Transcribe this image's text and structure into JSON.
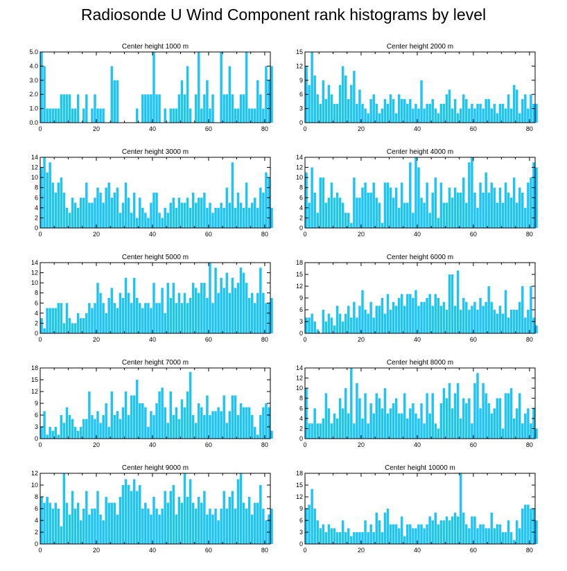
{
  "title": "Radiosonde U Wind Component rank histograms by level",
  "bar_color": "#1ec4f4",
  "chart_data": [
    {
      "type": "bar",
      "title": "Center height 1000 m",
      "xlabel": "",
      "ylabel": "",
      "xlim": [
        0,
        82
      ],
      "x_ticks": [
        0,
        20,
        40,
        60,
        80
      ],
      "ylim": [
        0,
        5
      ],
      "y_ticks": [
        0,
        1,
        2,
        3,
        4,
        5
      ],
      "y_tick_labels": [
        "0.0",
        "1.0",
        "2.0",
        "3.0",
        "4.0",
        "5.0"
      ],
      "y_axis_side": "left",
      "values": [
        5,
        4,
        1,
        1,
        1,
        1,
        1,
        2,
        2,
        2,
        2,
        1,
        1,
        2,
        0,
        1,
        2,
        0,
        1,
        2,
        1,
        1,
        1,
        0,
        0,
        4,
        3,
        3,
        0,
        0,
        0,
        0,
        0,
        0,
        1,
        0,
        2,
        2,
        2,
        2,
        5,
        2,
        2,
        0,
        1,
        0,
        1,
        1,
        1,
        2,
        3,
        2,
        4,
        1,
        0,
        2,
        5,
        1,
        2,
        3,
        1,
        2,
        0,
        0,
        5,
        2,
        2,
        4,
        2,
        1,
        1,
        2,
        2,
        5,
        1,
        1,
        1,
        3,
        2,
        1,
        4,
        3,
        4
      ]
    },
    {
      "type": "bar",
      "title": "Center height 2000 m",
      "xlabel": "",
      "ylabel": "",
      "xlim": [
        0,
        82
      ],
      "x_ticks": [
        0,
        20,
        40,
        60,
        80
      ],
      "ylim": [
        0,
        15
      ],
      "y_ticks": [
        0,
        3,
        6,
        9,
        12,
        15
      ],
      "y_tick_labels": [
        "0",
        "3",
        "6",
        "9",
        "12",
        "15"
      ],
      "y_axis_side": "left",
      "values": [
        12,
        8,
        15,
        10,
        6,
        4,
        9,
        5,
        8,
        6,
        4,
        4,
        8,
        12,
        10,
        5,
        8,
        11,
        4,
        7,
        4,
        3,
        2,
        5,
        6,
        4,
        2,
        3,
        5,
        4,
        6,
        5,
        2,
        6,
        5,
        5,
        4,
        5,
        3,
        4,
        3,
        9,
        3,
        4,
        4,
        5,
        3,
        2,
        4,
        4,
        6,
        7,
        3,
        5,
        2,
        3,
        6,
        5,
        3,
        4,
        3,
        4,
        4,
        3,
        5,
        5,
        3,
        4,
        2,
        4,
        4,
        3,
        6,
        3,
        8,
        7,
        2,
        5,
        6,
        3,
        6,
        4,
        4
      ]
    },
    {
      "type": "bar",
      "title": "Center height 3000 m",
      "xlabel": "",
      "ylabel": "",
      "xlim": [
        0,
        82
      ],
      "x_ticks": [
        0,
        20,
        40,
        60,
        80
      ],
      "ylim": [
        0,
        14
      ],
      "y_ticks": [
        0,
        2,
        4,
        6,
        8,
        10,
        12,
        14
      ],
      "y_tick_labels": [
        "0",
        "2",
        "4",
        "6",
        "8",
        "10",
        "12",
        "14"
      ],
      "y_axis_side": "left",
      "values": [
        12,
        14,
        11,
        13,
        9,
        7,
        9,
        10,
        7,
        4,
        3,
        6,
        5,
        4,
        6,
        6,
        9,
        5,
        5,
        6,
        8,
        7,
        5,
        8,
        9,
        6,
        7,
        8,
        3,
        5,
        9,
        6,
        3,
        7,
        2,
        6,
        4,
        3,
        2,
        5,
        7,
        7,
        3,
        2,
        4,
        3,
        5,
        6,
        4,
        6,
        5,
        5,
        6,
        4,
        7,
        5,
        6,
        6,
        7,
        4,
        5,
        3,
        4,
        4,
        5,
        4,
        8,
        5,
        13,
        4,
        7,
        5,
        4,
        9,
        4,
        5,
        6,
        4,
        8,
        7,
        11,
        10,
        4
      ]
    },
    {
      "type": "bar",
      "title": "Center height 4000 m",
      "xlabel": "",
      "ylabel": "",
      "xlim": [
        0,
        82
      ],
      "x_ticks": [
        0,
        20,
        40,
        60,
        80
      ],
      "ylim": [
        0,
        14
      ],
      "y_ticks": [
        0,
        2,
        4,
        6,
        8,
        10,
        12,
        14
      ],
      "y_tick_labels": [
        "0",
        "2",
        "4",
        "6",
        "8",
        "10",
        "12",
        "14"
      ],
      "y_axis_side": "left",
      "values": [
        11,
        5,
        12,
        7,
        3,
        10,
        10,
        5,
        6,
        9,
        6,
        7,
        6,
        5,
        3,
        3,
        1,
        10,
        6,
        6,
        8,
        9,
        7,
        7,
        9,
        6,
        5,
        1,
        9,
        9,
        8,
        6,
        8,
        4,
        9,
        5,
        5,
        13,
        3,
        14,
        12,
        6,
        5,
        9,
        3,
        7,
        10,
        2,
        9,
        5,
        5,
        8,
        6,
        8,
        7,
        7,
        10,
        5,
        13,
        14,
        7,
        4,
        9,
        7,
        11,
        7,
        9,
        8,
        5,
        8,
        5,
        9,
        7,
        6,
        10,
        5,
        8,
        7,
        4,
        9,
        10,
        13,
        12
      ]
    },
    {
      "type": "bar",
      "title": "Center height 5000 m",
      "xlabel": "",
      "ylabel": "",
      "xlim": [
        0,
        82
      ],
      "x_ticks": [
        0,
        20,
        40,
        60,
        80
      ],
      "ylim": [
        0,
        14
      ],
      "y_ticks": [
        0,
        2,
        4,
        6,
        8,
        10,
        12,
        14
      ],
      "y_tick_labels": [
        "0",
        "2",
        "4",
        "6",
        "8",
        "10",
        "12",
        "14"
      ],
      "y_axis_side": "left",
      "values": [
        3,
        1,
        5,
        5,
        5,
        5,
        6,
        6,
        2,
        6,
        3,
        2,
        2,
        4,
        3,
        3,
        4,
        6,
        5,
        6,
        10,
        8,
        6,
        4,
        7,
        9,
        6,
        5,
        8,
        7,
        11,
        8,
        6,
        11,
        7,
        6,
        5,
        6,
        6,
        5,
        10,
        6,
        6,
        9,
        4,
        10,
        7,
        10,
        6,
        8,
        6,
        8,
        6,
        7,
        10,
        9,
        8,
        10,
        10,
        7,
        14,
        6,
        13,
        8,
        11,
        9,
        12,
        8,
        11,
        9,
        10,
        13,
        12,
        10,
        7,
        8,
        6,
        8,
        13,
        8,
        6,
        6,
        7
      ]
    },
    {
      "type": "bar",
      "title": "Center height 6000 m",
      "xlabel": "",
      "ylabel": "",
      "xlim": [
        0,
        82
      ],
      "x_ticks": [
        0,
        20,
        40,
        60,
        80
      ],
      "ylim": [
        0,
        18
      ],
      "y_ticks": [
        0,
        3,
        6,
        9,
        12,
        15,
        18
      ],
      "y_tick_labels": [
        "0",
        "3",
        "6",
        "9",
        "12",
        "15",
        "18"
      ],
      "y_axis_side": "left",
      "values": [
        4,
        4,
        5,
        3,
        1,
        0,
        6,
        3,
        5,
        4,
        2,
        7,
        5,
        3,
        5,
        7,
        4,
        8,
        4,
        7,
        11,
        6,
        5,
        8,
        4,
        7,
        7,
        9,
        5,
        10,
        6,
        8,
        7,
        9,
        10,
        7,
        10,
        10,
        9,
        11,
        7,
        8,
        8,
        9,
        10,
        7,
        10,
        9,
        7,
        8,
        6,
        15,
        15,
        7,
        16,
        6,
        9,
        8,
        6,
        7,
        8,
        6,
        9,
        7,
        8,
        12,
        8,
        6,
        5,
        7,
        5,
        11,
        4,
        6,
        6,
        6,
        8,
        12,
        4,
        6,
        12,
        4,
        2
      ]
    },
    {
      "type": "bar",
      "title": "Center height 7000 m",
      "xlabel": "",
      "ylabel": "",
      "xlim": [
        0,
        82
      ],
      "x_ticks": [
        0,
        20,
        40,
        60,
        80
      ],
      "ylim": [
        0,
        18
      ],
      "y_ticks": [
        0,
        3,
        6,
        9,
        12,
        15,
        18
      ],
      "y_tick_labels": [
        "0",
        "3",
        "6",
        "9",
        "12",
        "15",
        "18"
      ],
      "y_axis_side": "left",
      "values": [
        3,
        7,
        1,
        3,
        2,
        3,
        1,
        6,
        4,
        8,
        6,
        5,
        3,
        2,
        3,
        5,
        5,
        12,
        6,
        5,
        7,
        4,
        6,
        9,
        3,
        12,
        6,
        7,
        5,
        8,
        12,
        6,
        11,
        11,
        15,
        9,
        9,
        8,
        3,
        7,
        6,
        9,
        12,
        13,
        8,
        4,
        12,
        6,
        8,
        5,
        10,
        8,
        12,
        17,
        6,
        4,
        9,
        8,
        6,
        11,
        6,
        7,
        7,
        8,
        7,
        11,
        4,
        7,
        11,
        11,
        6,
        9,
        8,
        8,
        8,
        6,
        3,
        1,
        6,
        8,
        9,
        8,
        2
      ]
    },
    {
      "type": "bar",
      "title": "Center height 8000 m",
      "xlabel": "",
      "ylabel": "",
      "xlim": [
        0,
        82
      ],
      "x_ticks": [
        0,
        20,
        40,
        60,
        80
      ],
      "ylim": [
        0,
        14
      ],
      "y_ticks": [
        0,
        2,
        4,
        6,
        8,
        10,
        12,
        14
      ],
      "y_tick_labels": [
        "0",
        "2",
        "4",
        "6",
        "8",
        "10",
        "12",
        "14"
      ],
      "y_axis_side": "left",
      "values": [
        10,
        3,
        3,
        6,
        3,
        3,
        4,
        9,
        6,
        3,
        5,
        4,
        8,
        6,
        10,
        5,
        14,
        3,
        11,
        8,
        4,
        9,
        3,
        7,
        5,
        9,
        8,
        6,
        10,
        5,
        6,
        7,
        8,
        5,
        5,
        9,
        4,
        6,
        7,
        5,
        4,
        7,
        3,
        9,
        5,
        9,
        3,
        2,
        7,
        10,
        8,
        11,
        6,
        9,
        11,
        4,
        8,
        7,
        8,
        3,
        11,
        13,
        6,
        11,
        9,
        7,
        5,
        6,
        8,
        8,
        2,
        9,
        9,
        10,
        4,
        6,
        9,
        3,
        5,
        6,
        3,
        6,
        2
      ]
    },
    {
      "type": "bar",
      "title": "Center height 9000 m",
      "xlabel": "",
      "ylabel": "",
      "xlim": [
        0,
        82
      ],
      "x_ticks": [
        0,
        20,
        40,
        60,
        80
      ],
      "ylim": [
        0,
        12
      ],
      "y_ticks": [
        0,
        2,
        4,
        6,
        8,
        10,
        12
      ],
      "y_tick_labels": [
        "0",
        "2",
        "4",
        "6",
        "8",
        "10",
        "12"
      ],
      "y_axis_side": "left",
      "values": [
        8,
        7,
        8,
        7,
        6,
        7,
        6,
        3,
        12,
        7,
        5,
        9,
        6,
        7,
        4,
        6,
        9,
        5,
        6,
        6,
        9,
        5,
        4,
        8,
        7,
        7,
        7,
        5,
        8,
        10,
        11,
        10,
        9,
        11,
        9,
        10,
        6,
        7,
        6,
        5,
        8,
        6,
        5,
        6,
        9,
        7,
        9,
        10,
        5,
        8,
        7,
        12,
        8,
        11,
        7,
        6,
        8,
        7,
        9,
        5,
        6,
        5,
        6,
        4,
        6,
        9,
        6,
        8,
        9,
        6,
        11,
        12,
        7,
        6,
        8,
        5,
        7,
        7,
        10,
        6,
        4,
        5,
        6
      ]
    },
    {
      "type": "bar",
      "title": "Center height 10000 m",
      "xlabel": "",
      "ylabel": "",
      "xlim": [
        0,
        82
      ],
      "x_ticks": [
        0,
        20,
        40,
        60,
        80
      ],
      "ylim": [
        0,
        18
      ],
      "y_ticks": [
        0,
        3,
        6,
        9,
        12,
        15,
        18
      ],
      "y_tick_labels": [
        "0",
        "3",
        "6",
        "9",
        "12",
        "15",
        "18"
      ],
      "y_axis_side": "left",
      "values": [
        9,
        10,
        14,
        9,
        6,
        4,
        5,
        3,
        5,
        4,
        4,
        3,
        3,
        6,
        3,
        4,
        2,
        3,
        3,
        3,
        3,
        6,
        3,
        5,
        3,
        8,
        6,
        3,
        8,
        9,
        5,
        5,
        5,
        4,
        7,
        2,
        5,
        5,
        4,
        4,
        5,
        5,
        4,
        5,
        7,
        6,
        8,
        5,
        6,
        6,
        7,
        6,
        7,
        8,
        7,
        18,
        8,
        5,
        4,
        7,
        7,
        4,
        5,
        5,
        4,
        4,
        8,
        4,
        5,
        5,
        3,
        3,
        6,
        3,
        1,
        6,
        4,
        9,
        10,
        10,
        9,
        9,
        6
      ]
    }
  ]
}
